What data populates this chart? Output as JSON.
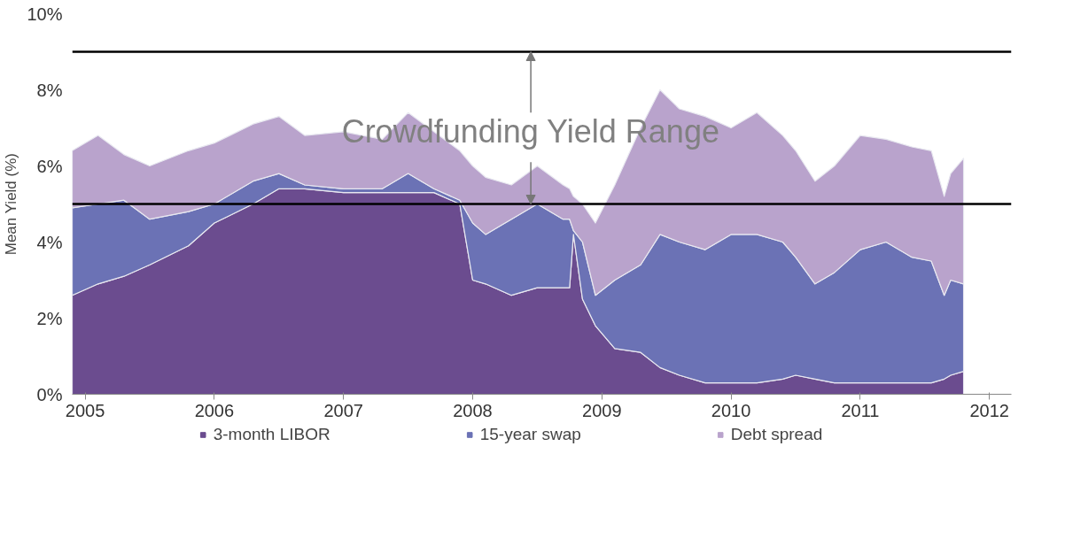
{
  "chart_data": {
    "type": "area",
    "stacked": true,
    "ylabel": "Mean Yield (%)",
    "x": [
      2004.9,
      2005.1,
      2005.3,
      2005.5,
      2005.8,
      2006.0,
      2006.3,
      2006.5,
      2006.7,
      2007.0,
      2007.3,
      2007.5,
      2007.7,
      2007.9,
      2008.0,
      2008.1,
      2008.3,
      2008.5,
      2008.7,
      2008.75,
      2008.78,
      2008.85,
      2008.95,
      2009.1,
      2009.3,
      2009.45,
      2009.6,
      2009.8,
      2010.0,
      2010.2,
      2010.4,
      2010.5,
      2010.65,
      2010.8,
      2011.0,
      2011.2,
      2011.4,
      2011.55,
      2011.65,
      2011.7,
      2011.8
    ],
    "series": [
      {
        "name": "3-month LIBOR",
        "color": "#6b4c8f",
        "values": [
          2.6,
          2.9,
          3.1,
          3.4,
          3.9,
          4.5,
          5.0,
          5.4,
          5.4,
          5.3,
          5.3,
          5.3,
          5.3,
          5.0,
          3.0,
          2.9,
          2.6,
          2.8,
          2.8,
          2.8,
          4.2,
          2.5,
          1.8,
          1.2,
          1.1,
          0.7,
          0.5,
          0.3,
          0.3,
          0.3,
          0.4,
          0.5,
          0.4,
          0.3,
          0.3,
          0.3,
          0.3,
          0.3,
          0.4,
          0.5,
          0.6
        ]
      },
      {
        "name": "15-year swap",
        "color": "#6b72b5",
        "values": [
          2.3,
          2.1,
          2.0,
          1.2,
          0.9,
          0.5,
          0.6,
          0.4,
          0.1,
          0.1,
          0.1,
          0.5,
          0.1,
          0.1,
          1.5,
          1.3,
          2.0,
          2.2,
          1.8,
          1.8,
          0.1,
          1.5,
          0.8,
          1.8,
          2.3,
          3.5,
          3.5,
          3.5,
          3.9,
          3.9,
          3.6,
          3.1,
          2.5,
          2.9,
          3.5,
          3.7,
          3.3,
          3.2,
          2.2,
          2.5,
          2.3
        ]
      },
      {
        "name": "Debt spread",
        "color": "#b9a3cc",
        "values": [
          1.5,
          1.8,
          1.2,
          1.4,
          1.6,
          1.6,
          1.5,
          1.5,
          1.3,
          1.5,
          1.3,
          1.6,
          1.5,
          1.3,
          1.5,
          1.5,
          0.9,
          1.0,
          0.9,
          0.8,
          0.9,
          1.0,
          1.9,
          2.5,
          3.6,
          3.8,
          3.5,
          3.5,
          2.8,
          3.2,
          2.8,
          2.8,
          2.7,
          2.8,
          3.0,
          2.7,
          2.9,
          2.9,
          2.6,
          2.8,
          3.3
        ]
      }
    ],
    "xlim": [
      2004.9,
      2012.17
    ],
    "xticks": [
      2005,
      2006,
      2007,
      2008,
      2009,
      2010,
      2011,
      2012
    ],
    "ylim": [
      0,
      10
    ],
    "yticks": [
      {
        "value": 0,
        "label": "0%"
      },
      {
        "value": 2,
        "label": "2%"
      },
      {
        "value": 4,
        "label": "4%"
      },
      {
        "value": 6,
        "label": "6%"
      },
      {
        "value": 8,
        "label": "8%"
      },
      {
        "value": 10,
        "label": "10%"
      }
    ],
    "ref_lines": [
      {
        "axis": "y",
        "value": 5,
        "label": null,
        "color": "#000000"
      },
      {
        "axis": "y",
        "value": 9,
        "label": null,
        "color": "#000000"
      }
    ],
    "annotations": [
      {
        "text": "Crowdfunding Yield Range",
        "x": 2008.45,
        "y": 9
      }
    ],
    "grid": false,
    "legend": "bottom"
  }
}
